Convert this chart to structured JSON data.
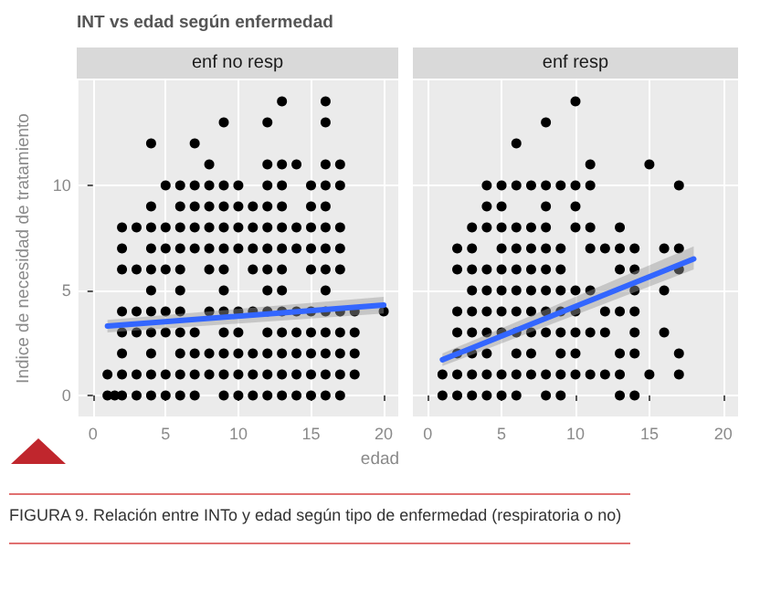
{
  "chart_data": [
    {
      "type": "scatter",
      "title": "INT vs edad según enfermedad",
      "subtitle": "enf no resp",
      "xlabel": "edad",
      "ylabel": "Indice de necesidad de tratamiento",
      "annotations": [
        "FIGURA 9. Relación entre INTo y edad según tipo de enfermedad (respiratoria o no)"
      ],
      "xlim": [
        -1,
        21
      ],
      "ylim": [
        -1,
        15
      ],
      "xticks": [
        0,
        5,
        10,
        15,
        20
      ],
      "yticks": [
        0,
        5,
        10
      ],
      "grid": true,
      "series": [
        {
          "marker": "circle",
          "color": "#000000",
          "x": [
            1,
            1.5,
            2,
            3,
            4,
            5,
            6,
            7,
            9,
            10,
            11,
            12,
            13,
            14,
            15,
            16,
            17,
            1,
            2,
            3,
            4,
            5,
            6,
            7,
            8,
            9,
            10,
            11,
            12,
            13,
            14,
            15,
            16,
            17,
            18,
            2,
            4,
            6,
            7,
            8,
            9,
            10,
            11,
            12,
            13,
            14,
            15,
            16,
            17,
            18,
            2,
            3,
            4,
            5,
            6,
            7,
            9,
            10,
            12,
            13,
            14,
            15,
            16,
            17,
            18,
            2,
            3,
            4,
            5,
            6,
            8,
            9,
            10,
            11,
            12,
            13,
            14,
            15,
            16,
            17,
            18,
            20,
            4,
            6,
            9,
            12,
            13,
            16,
            2,
            3,
            4,
            5,
            6,
            8,
            9,
            11,
            12,
            13,
            15,
            16,
            17,
            2,
            4,
            5,
            6,
            7,
            8,
            9,
            10,
            11,
            12,
            13,
            14,
            15,
            16,
            17,
            2,
            3,
            4,
            5,
            6,
            7,
            8,
            9,
            10,
            11,
            12,
            13,
            14,
            15,
            16,
            17,
            4,
            6,
            7,
            8,
            9,
            10,
            11,
            12,
            13,
            15,
            16,
            5,
            6,
            7,
            8,
            9,
            10,
            12,
            13,
            15,
            16,
            17,
            8,
            12,
            13,
            14,
            16,
            17,
            4,
            7,
            9,
            12,
            13,
            16,
            16
          ],
          "values": [
            0,
            0,
            0,
            0,
            0,
            0,
            0,
            0,
            0,
            0,
            0,
            0,
            0,
            0,
            0,
            0,
            0,
            1,
            1,
            1,
            1,
            1,
            1,
            1,
            1,
            1,
            1,
            1,
            1,
            1,
            1,
            1,
            1,
            1,
            1,
            2,
            2,
            2,
            2,
            2,
            2,
            2,
            2,
            2,
            2,
            2,
            2,
            2,
            2,
            2,
            3,
            3,
            3,
            3,
            3,
            3,
            3,
            3,
            3,
            3,
            3,
            3,
            3,
            3,
            3,
            4,
            4,
            4,
            4,
            4,
            4,
            4,
            4,
            4,
            4,
            4,
            4,
            4,
            4,
            4,
            4,
            4,
            5,
            5,
            5,
            5,
            5,
            5,
            6,
            6,
            6,
            6,
            6,
            6,
            6,
            6,
            6,
            6,
            6,
            6,
            6,
            7,
            7,
            7,
            7,
            7,
            7,
            7,
            7,
            7,
            7,
            7,
            7,
            7,
            7,
            7,
            8,
            8,
            8,
            8,
            8,
            8,
            8,
            8,
            8,
            8,
            8,
            8,
            8,
            8,
            8,
            8,
            9,
            9,
            9,
            9,
            9,
            9,
            9,
            9,
            9,
            9,
            9,
            10,
            10,
            10,
            10,
            10,
            10,
            10,
            10,
            10,
            10,
            10,
            11,
            11,
            11,
            11,
            11,
            11,
            12,
            12,
            13,
            13,
            14,
            14,
            13
          ]
        },
        {
          "type": "line",
          "color": "#3366ff",
          "x": [
            1,
            20
          ],
          "values": [
            3.3,
            4.3
          ],
          "lower": [
            3.0,
            3.9
          ],
          "upper": [
            3.6,
            4.7
          ]
        }
      ]
    },
    {
      "type": "scatter",
      "title": "enf resp",
      "xlim": [
        -1,
        21
      ],
      "ylim": [
        -1,
        15
      ],
      "xticks": [
        0,
        5,
        10,
        15,
        20
      ],
      "yticks": [
        0,
        5,
        10
      ],
      "grid": true,
      "tick_labels": "x",
      "series": [
        {
          "marker": "circle",
          "color": "#000000",
          "x": [
            1,
            2,
            3,
            4,
            5,
            6,
            8,
            9,
            13,
            14,
            1,
            2,
            3,
            4,
            5,
            6,
            7,
            8,
            9,
            10,
            11,
            12,
            13,
            15,
            17,
            2,
            3,
            4,
            6,
            7,
            9,
            10,
            13,
            14,
            17,
            2,
            3,
            4,
            5,
            6,
            7,
            8,
            9,
            10,
            11,
            12,
            14,
            16,
            2,
            3,
            4,
            5,
            6,
            7,
            8,
            9,
            10,
            12,
            13,
            14,
            3,
            4,
            5,
            6,
            7,
            8,
            9,
            10,
            11,
            14,
            16,
            2,
            3,
            4,
            5,
            6,
            7,
            8,
            9,
            13,
            14,
            17,
            2,
            3,
            5,
            6,
            7,
            8,
            9,
            11,
            12,
            13,
            14,
            16,
            17,
            3,
            4,
            5,
            6,
            7,
            8,
            10,
            11,
            13,
            4,
            5,
            8,
            10,
            4,
            5,
            6,
            7,
            8,
            9,
            10,
            11,
            17,
            11,
            15,
            6,
            8,
            10
          ],
          "values": [
            0,
            0,
            0,
            0,
            0,
            0,
            0,
            0,
            0,
            0,
            1,
            1,
            1,
            1,
            1,
            1,
            1,
            1,
            1,
            1,
            1,
            1,
            1,
            1,
            1,
            2,
            2,
            2,
            2,
            2,
            2,
            2,
            2,
            2,
            2,
            3,
            3,
            3,
            3,
            3,
            3,
            3,
            3,
            3,
            3,
            3,
            3,
            3,
            4,
            4,
            4,
            4,
            4,
            4,
            4,
            4,
            4,
            4,
            4,
            4,
            5,
            5,
            5,
            5,
            5,
            5,
            5,
            5,
            5,
            5,
            5,
            6,
            6,
            6,
            6,
            6,
            6,
            6,
            6,
            6,
            6,
            6,
            7,
            7,
            7,
            7,
            7,
            7,
            7,
            7,
            7,
            7,
            7,
            7,
            7,
            8,
            8,
            8,
            8,
            8,
            8,
            8,
            8,
            8,
            9,
            9,
            9,
            9,
            10,
            10,
            10,
            10,
            10,
            10,
            10,
            10,
            10,
            11,
            11,
            12,
            13,
            14
          ]
        },
        {
          "type": "line",
          "color": "#3366ff",
          "x": [
            1,
            18
          ],
          "values": [
            1.7,
            6.5
          ],
          "lower": [
            1.4,
            6.0
          ],
          "upper": [
            2.0,
            7.1
          ]
        }
      ]
    }
  ]
}
